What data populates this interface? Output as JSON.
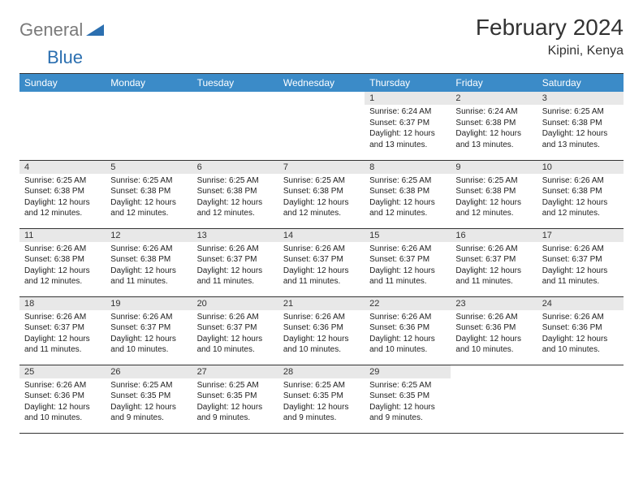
{
  "logo": {
    "part1": "General",
    "part2": "Blue"
  },
  "title": "February 2024",
  "location": "Kipini, Kenya",
  "colors": {
    "header_bg": "#3b8bc8",
    "header_text": "#ffffff",
    "daynum_bg": "#e8e8e8",
    "border": "#333333",
    "logo_gray": "#7a7a7a",
    "logo_blue": "#2b6fb0"
  },
  "day_headers": [
    "Sunday",
    "Monday",
    "Tuesday",
    "Wednesday",
    "Thursday",
    "Friday",
    "Saturday"
  ],
  "weeks": [
    [
      {
        "num": "",
        "lines": []
      },
      {
        "num": "",
        "lines": []
      },
      {
        "num": "",
        "lines": []
      },
      {
        "num": "",
        "lines": []
      },
      {
        "num": "1",
        "lines": [
          "Sunrise: 6:24 AM",
          "Sunset: 6:37 PM",
          "Daylight: 12 hours",
          "and 13 minutes."
        ]
      },
      {
        "num": "2",
        "lines": [
          "Sunrise: 6:24 AM",
          "Sunset: 6:38 PM",
          "Daylight: 12 hours",
          "and 13 minutes."
        ]
      },
      {
        "num": "3",
        "lines": [
          "Sunrise: 6:25 AM",
          "Sunset: 6:38 PM",
          "Daylight: 12 hours",
          "and 13 minutes."
        ]
      }
    ],
    [
      {
        "num": "4",
        "lines": [
          "Sunrise: 6:25 AM",
          "Sunset: 6:38 PM",
          "Daylight: 12 hours",
          "and 12 minutes."
        ]
      },
      {
        "num": "5",
        "lines": [
          "Sunrise: 6:25 AM",
          "Sunset: 6:38 PM",
          "Daylight: 12 hours",
          "and 12 minutes."
        ]
      },
      {
        "num": "6",
        "lines": [
          "Sunrise: 6:25 AM",
          "Sunset: 6:38 PM",
          "Daylight: 12 hours",
          "and 12 minutes."
        ]
      },
      {
        "num": "7",
        "lines": [
          "Sunrise: 6:25 AM",
          "Sunset: 6:38 PM",
          "Daylight: 12 hours",
          "and 12 minutes."
        ]
      },
      {
        "num": "8",
        "lines": [
          "Sunrise: 6:25 AM",
          "Sunset: 6:38 PM",
          "Daylight: 12 hours",
          "and 12 minutes."
        ]
      },
      {
        "num": "9",
        "lines": [
          "Sunrise: 6:25 AM",
          "Sunset: 6:38 PM",
          "Daylight: 12 hours",
          "and 12 minutes."
        ]
      },
      {
        "num": "10",
        "lines": [
          "Sunrise: 6:26 AM",
          "Sunset: 6:38 PM",
          "Daylight: 12 hours",
          "and 12 minutes."
        ]
      }
    ],
    [
      {
        "num": "11",
        "lines": [
          "Sunrise: 6:26 AM",
          "Sunset: 6:38 PM",
          "Daylight: 12 hours",
          "and 12 minutes."
        ]
      },
      {
        "num": "12",
        "lines": [
          "Sunrise: 6:26 AM",
          "Sunset: 6:38 PM",
          "Daylight: 12 hours",
          "and 11 minutes."
        ]
      },
      {
        "num": "13",
        "lines": [
          "Sunrise: 6:26 AM",
          "Sunset: 6:37 PM",
          "Daylight: 12 hours",
          "and 11 minutes."
        ]
      },
      {
        "num": "14",
        "lines": [
          "Sunrise: 6:26 AM",
          "Sunset: 6:37 PM",
          "Daylight: 12 hours",
          "and 11 minutes."
        ]
      },
      {
        "num": "15",
        "lines": [
          "Sunrise: 6:26 AM",
          "Sunset: 6:37 PM",
          "Daylight: 12 hours",
          "and 11 minutes."
        ]
      },
      {
        "num": "16",
        "lines": [
          "Sunrise: 6:26 AM",
          "Sunset: 6:37 PM",
          "Daylight: 12 hours",
          "and 11 minutes."
        ]
      },
      {
        "num": "17",
        "lines": [
          "Sunrise: 6:26 AM",
          "Sunset: 6:37 PM",
          "Daylight: 12 hours",
          "and 11 minutes."
        ]
      }
    ],
    [
      {
        "num": "18",
        "lines": [
          "Sunrise: 6:26 AM",
          "Sunset: 6:37 PM",
          "Daylight: 12 hours",
          "and 11 minutes."
        ]
      },
      {
        "num": "19",
        "lines": [
          "Sunrise: 6:26 AM",
          "Sunset: 6:37 PM",
          "Daylight: 12 hours",
          "and 10 minutes."
        ]
      },
      {
        "num": "20",
        "lines": [
          "Sunrise: 6:26 AM",
          "Sunset: 6:37 PM",
          "Daylight: 12 hours",
          "and 10 minutes."
        ]
      },
      {
        "num": "21",
        "lines": [
          "Sunrise: 6:26 AM",
          "Sunset: 6:36 PM",
          "Daylight: 12 hours",
          "and 10 minutes."
        ]
      },
      {
        "num": "22",
        "lines": [
          "Sunrise: 6:26 AM",
          "Sunset: 6:36 PM",
          "Daylight: 12 hours",
          "and 10 minutes."
        ]
      },
      {
        "num": "23",
        "lines": [
          "Sunrise: 6:26 AM",
          "Sunset: 6:36 PM",
          "Daylight: 12 hours",
          "and 10 minutes."
        ]
      },
      {
        "num": "24",
        "lines": [
          "Sunrise: 6:26 AM",
          "Sunset: 6:36 PM",
          "Daylight: 12 hours",
          "and 10 minutes."
        ]
      }
    ],
    [
      {
        "num": "25",
        "lines": [
          "Sunrise: 6:26 AM",
          "Sunset: 6:36 PM",
          "Daylight: 12 hours",
          "and 10 minutes."
        ]
      },
      {
        "num": "26",
        "lines": [
          "Sunrise: 6:25 AM",
          "Sunset: 6:35 PM",
          "Daylight: 12 hours",
          "and 9 minutes."
        ]
      },
      {
        "num": "27",
        "lines": [
          "Sunrise: 6:25 AM",
          "Sunset: 6:35 PM",
          "Daylight: 12 hours",
          "and 9 minutes."
        ]
      },
      {
        "num": "28",
        "lines": [
          "Sunrise: 6:25 AM",
          "Sunset: 6:35 PM",
          "Daylight: 12 hours",
          "and 9 minutes."
        ]
      },
      {
        "num": "29",
        "lines": [
          "Sunrise: 6:25 AM",
          "Sunset: 6:35 PM",
          "Daylight: 12 hours",
          "and 9 minutes."
        ]
      },
      {
        "num": "",
        "lines": []
      },
      {
        "num": "",
        "lines": []
      }
    ]
  ]
}
